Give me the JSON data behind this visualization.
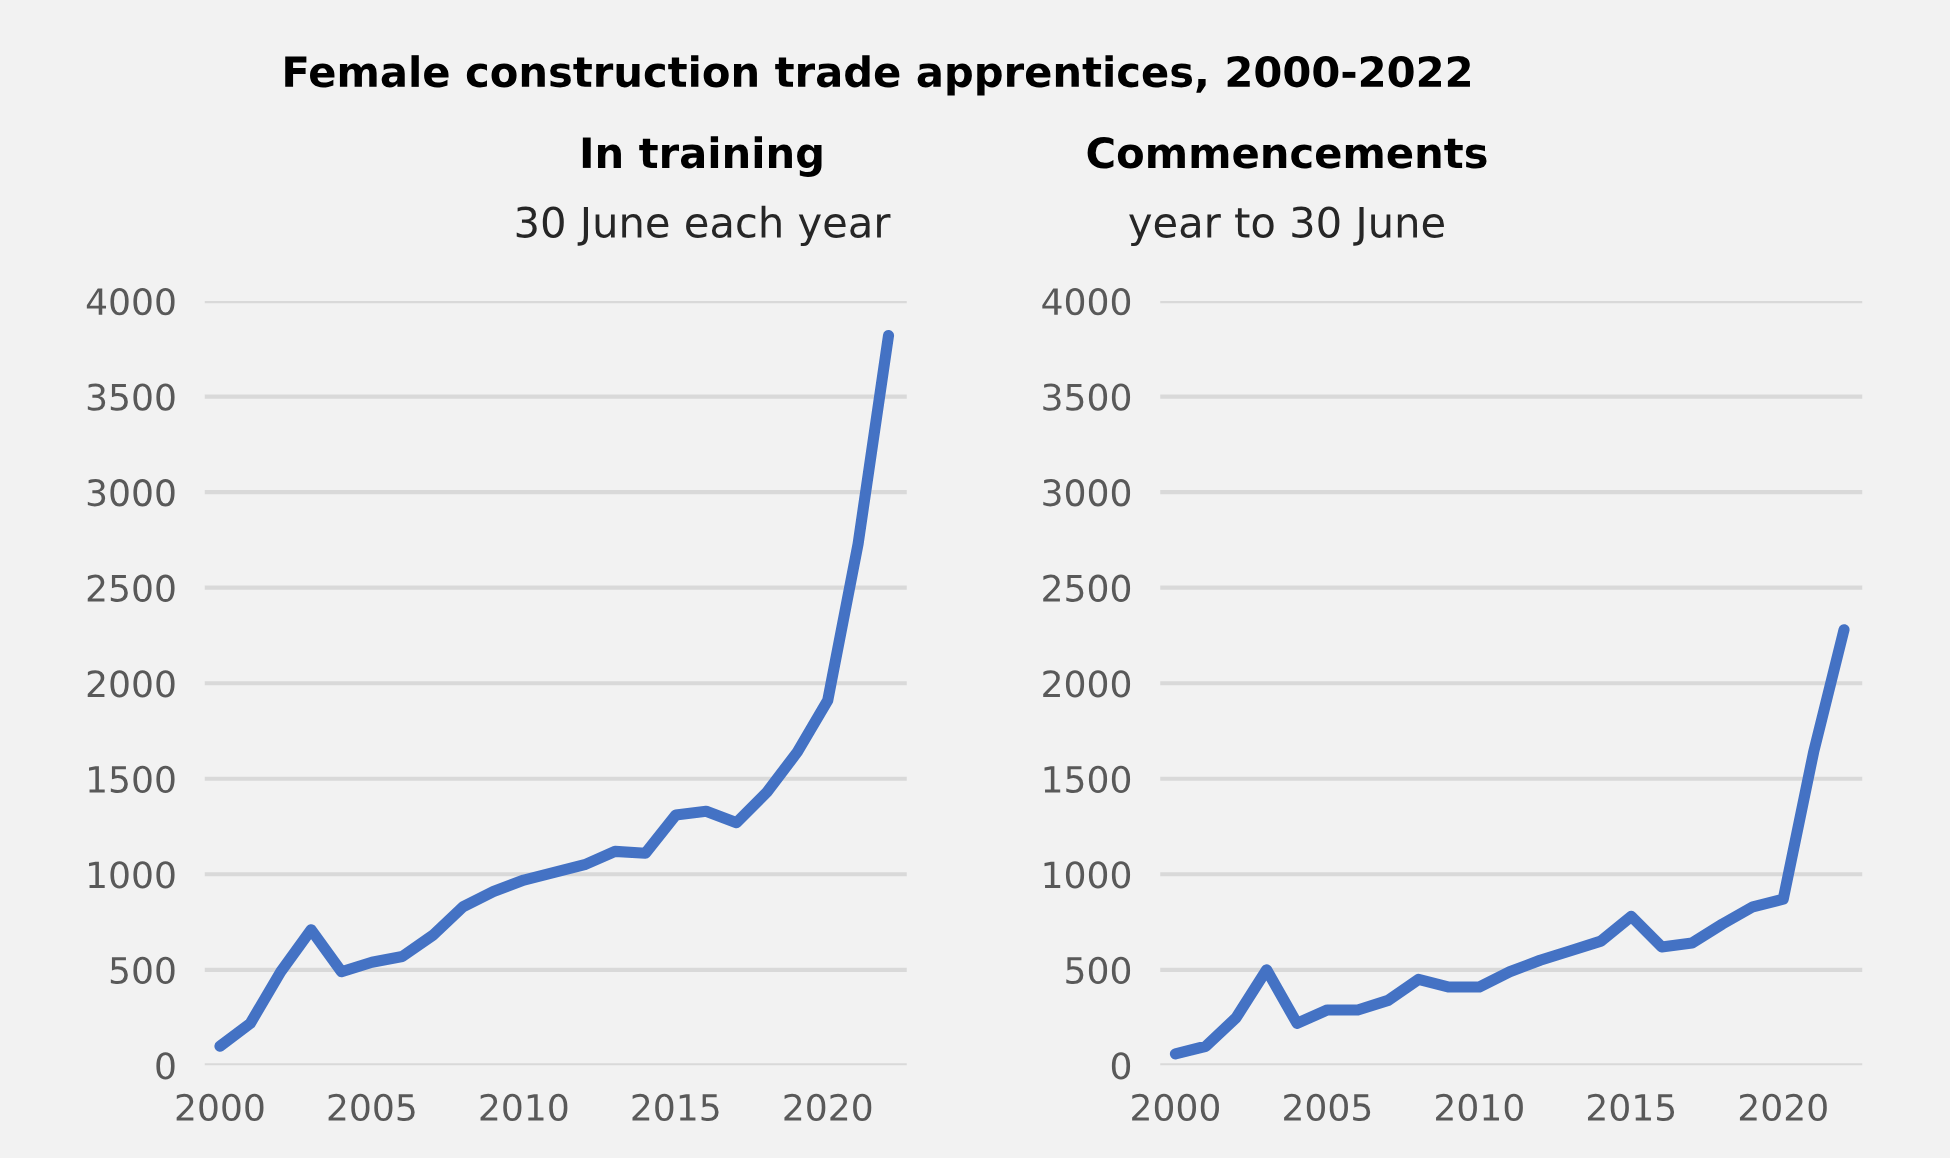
{
  "chart_data": [
    {
      "type": "line",
      "title": "In training",
      "subtitle": "30 June each year",
      "annotations": [
        "Female construction trade apprentices, 2000-2022"
      ],
      "x": [
        2000,
        2001,
        2002,
        2003,
        2004,
        2005,
        2006,
        2007,
        2008,
        2009,
        2010,
        2011,
        2012,
        2013,
        2014,
        2015,
        2016,
        2017,
        2018,
        2019,
        2020,
        2021,
        2022
      ],
      "series": [
        {
          "color": "#4472c4",
          "values": [
            100,
            220,
            490,
            710,
            490,
            540,
            570,
            680,
            830,
            910,
            970,
            1010,
            1050,
            1120,
            1110,
            1310,
            1330,
            1270,
            1430,
            1640,
            1910,
            2730,
            3820
          ]
        }
      ],
      "xlim": [
        1999.5,
        2022.6
      ],
      "xticks": [
        2000,
        2005,
        2010,
        2015,
        2020
      ],
      "ylim": [
        0,
        4000
      ],
      "yticks": [
        0,
        500,
        1000,
        1500,
        2000,
        2500,
        3000,
        3500,
        4000
      ],
      "grid": "y",
      "legend": false
    },
    {
      "type": "line",
      "title": "Commencements",
      "subtitle": "year to 30 June",
      "x": [
        2000,
        2001,
        2002,
        2003,
        2004,
        2005,
        2006,
        2007,
        2008,
        2009,
        2010,
        2011,
        2012,
        2013,
        2014,
        2015,
        2016,
        2017,
        2018,
        2019,
        2020,
        2021,
        2022
      ],
      "series": [
        {
          "color": "#4472c4",
          "values": [
            60,
            100,
            250,
            500,
            220,
            290,
            290,
            340,
            450,
            410,
            410,
            490,
            550,
            600,
            650,
            780,
            620,
            640,
            740,
            830,
            870,
            1640,
            2280
          ]
        }
      ],
      "xlim": [
        1999.5,
        2022.6
      ],
      "xticks": [
        2000,
        2005,
        2010,
        2015,
        2020
      ],
      "ylim": [
        0,
        4000
      ],
      "yticks": [
        0,
        500,
        1000,
        1500,
        2000,
        2500,
        3000,
        3500,
        4000
      ],
      "grid": "y",
      "legend": false
    }
  ]
}
